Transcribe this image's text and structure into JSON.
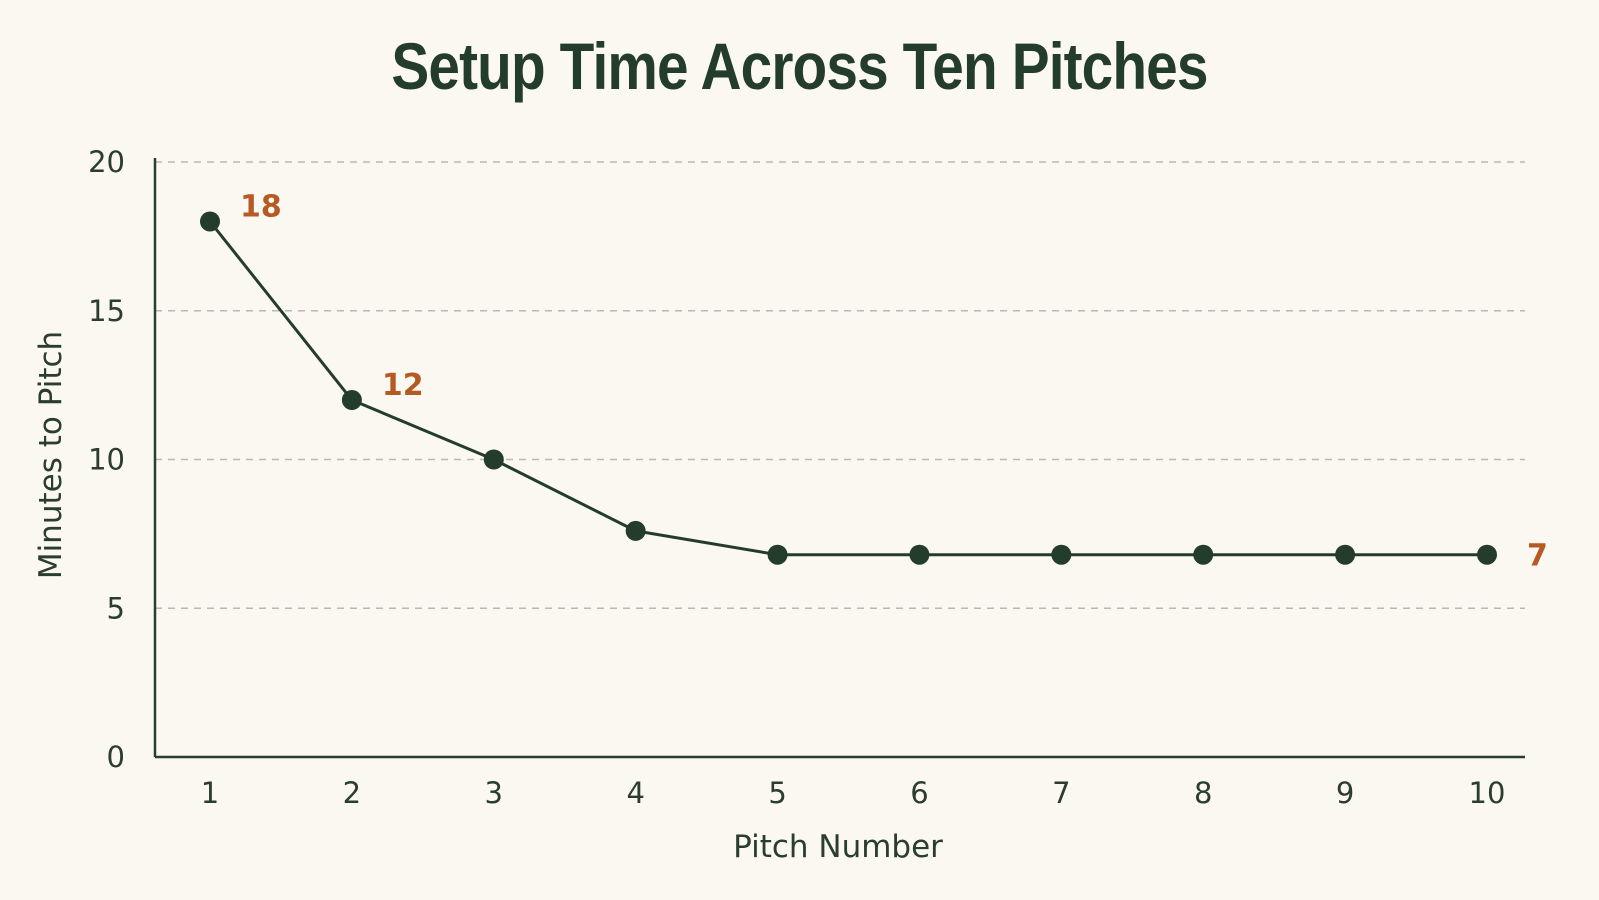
{
  "colors": {
    "background": "#faf8f1",
    "line": "#243d2b",
    "axis": "#2a3d2e",
    "grid": "#b9b9b2",
    "label_accent": "#b65a23"
  },
  "chart_data": {
    "type": "line",
    "title": "Setup Time Across Ten Pitches",
    "xlabel": "Pitch Number",
    "ylabel": "Minutes to Pitch",
    "x": [
      1,
      2,
      3,
      4,
      5,
      6,
      7,
      8,
      9,
      10
    ],
    "series": [
      {
        "values": [
          18,
          12,
          10,
          7.6,
          6.8,
          6.8,
          6.8,
          6.8,
          6.8,
          6.8
        ]
      }
    ],
    "ylim": [
      0,
      20
    ],
    "y_ticks": [
      0,
      5,
      10,
      15,
      20
    ],
    "x_ticks": [
      "1",
      "2",
      "3",
      "4",
      "5",
      "6",
      "7",
      "8",
      "9",
      "10"
    ],
    "grid": "horizontal dashed",
    "annotations": [
      {
        "x": 1,
        "text": "18"
      },
      {
        "x": 2,
        "text": "12"
      },
      {
        "x": 10,
        "text": "7"
      }
    ]
  }
}
